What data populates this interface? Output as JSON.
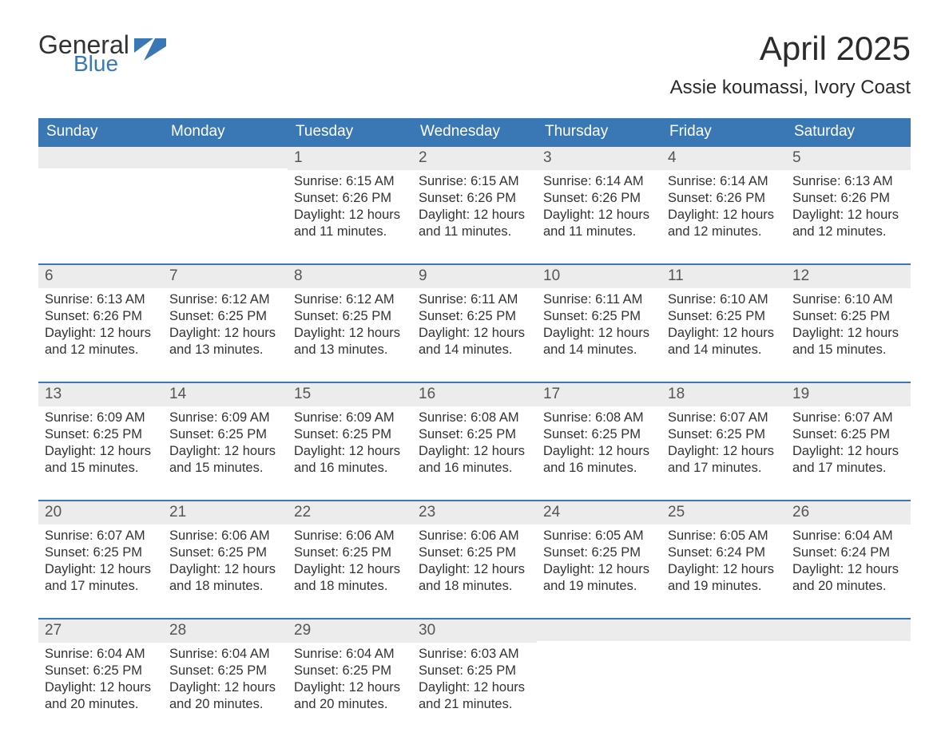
{
  "brand": {
    "word1": "General",
    "word2": "Blue",
    "accent_color": "#3a78b5"
  },
  "title": "April 2025",
  "location": "Assie koumassi, Ivory Coast",
  "colors": {
    "header_bg": "#3a78b5",
    "header_text": "#ffffff",
    "daynum_bg": "#ececec",
    "daynum_text": "#555555",
    "body_text": "#333333",
    "row_divider": "#3a78b5",
    "page_bg": "#ffffff"
  },
  "typography": {
    "title_fontsize": 42,
    "location_fontsize": 24,
    "header_fontsize": 19,
    "daynum_fontsize": 19,
    "cell_fontsize": 16.5
  },
  "day_headers": [
    "Sunday",
    "Monday",
    "Tuesday",
    "Wednesday",
    "Thursday",
    "Friday",
    "Saturday"
  ],
  "weeks": [
    [
      {
        "day": "",
        "sunrise": "",
        "sunset": "",
        "daylight": ""
      },
      {
        "day": "",
        "sunrise": "",
        "sunset": "",
        "daylight": ""
      },
      {
        "day": "1",
        "sunrise": "Sunrise: 6:15 AM",
        "sunset": "Sunset: 6:26 PM",
        "daylight": "Daylight: 12 hours and 11 minutes."
      },
      {
        "day": "2",
        "sunrise": "Sunrise: 6:15 AM",
        "sunset": "Sunset: 6:26 PM",
        "daylight": "Daylight: 12 hours and 11 minutes."
      },
      {
        "day": "3",
        "sunrise": "Sunrise: 6:14 AM",
        "sunset": "Sunset: 6:26 PM",
        "daylight": "Daylight: 12 hours and 11 minutes."
      },
      {
        "day": "4",
        "sunrise": "Sunrise: 6:14 AM",
        "sunset": "Sunset: 6:26 PM",
        "daylight": "Daylight: 12 hours and 12 minutes."
      },
      {
        "day": "5",
        "sunrise": "Sunrise: 6:13 AM",
        "sunset": "Sunset: 6:26 PM",
        "daylight": "Daylight: 12 hours and 12 minutes."
      }
    ],
    [
      {
        "day": "6",
        "sunrise": "Sunrise: 6:13 AM",
        "sunset": "Sunset: 6:26 PM",
        "daylight": "Daylight: 12 hours and 12 minutes."
      },
      {
        "day": "7",
        "sunrise": "Sunrise: 6:12 AM",
        "sunset": "Sunset: 6:25 PM",
        "daylight": "Daylight: 12 hours and 13 minutes."
      },
      {
        "day": "8",
        "sunrise": "Sunrise: 6:12 AM",
        "sunset": "Sunset: 6:25 PM",
        "daylight": "Daylight: 12 hours and 13 minutes."
      },
      {
        "day": "9",
        "sunrise": "Sunrise: 6:11 AM",
        "sunset": "Sunset: 6:25 PM",
        "daylight": "Daylight: 12 hours and 14 minutes."
      },
      {
        "day": "10",
        "sunrise": "Sunrise: 6:11 AM",
        "sunset": "Sunset: 6:25 PM",
        "daylight": "Daylight: 12 hours and 14 minutes."
      },
      {
        "day": "11",
        "sunrise": "Sunrise: 6:10 AM",
        "sunset": "Sunset: 6:25 PM",
        "daylight": "Daylight: 12 hours and 14 minutes."
      },
      {
        "day": "12",
        "sunrise": "Sunrise: 6:10 AM",
        "sunset": "Sunset: 6:25 PM",
        "daylight": "Daylight: 12 hours and 15 minutes."
      }
    ],
    [
      {
        "day": "13",
        "sunrise": "Sunrise: 6:09 AM",
        "sunset": "Sunset: 6:25 PM",
        "daylight": "Daylight: 12 hours and 15 minutes."
      },
      {
        "day": "14",
        "sunrise": "Sunrise: 6:09 AM",
        "sunset": "Sunset: 6:25 PM",
        "daylight": "Daylight: 12 hours and 15 minutes."
      },
      {
        "day": "15",
        "sunrise": "Sunrise: 6:09 AM",
        "sunset": "Sunset: 6:25 PM",
        "daylight": "Daylight: 12 hours and 16 minutes."
      },
      {
        "day": "16",
        "sunrise": "Sunrise: 6:08 AM",
        "sunset": "Sunset: 6:25 PM",
        "daylight": "Daylight: 12 hours and 16 minutes."
      },
      {
        "day": "17",
        "sunrise": "Sunrise: 6:08 AM",
        "sunset": "Sunset: 6:25 PM",
        "daylight": "Daylight: 12 hours and 16 minutes."
      },
      {
        "day": "18",
        "sunrise": "Sunrise: 6:07 AM",
        "sunset": "Sunset: 6:25 PM",
        "daylight": "Daylight: 12 hours and 17 minutes."
      },
      {
        "day": "19",
        "sunrise": "Sunrise: 6:07 AM",
        "sunset": "Sunset: 6:25 PM",
        "daylight": "Daylight: 12 hours and 17 minutes."
      }
    ],
    [
      {
        "day": "20",
        "sunrise": "Sunrise: 6:07 AM",
        "sunset": "Sunset: 6:25 PM",
        "daylight": "Daylight: 12 hours and 17 minutes."
      },
      {
        "day": "21",
        "sunrise": "Sunrise: 6:06 AM",
        "sunset": "Sunset: 6:25 PM",
        "daylight": "Daylight: 12 hours and 18 minutes."
      },
      {
        "day": "22",
        "sunrise": "Sunrise: 6:06 AM",
        "sunset": "Sunset: 6:25 PM",
        "daylight": "Daylight: 12 hours and 18 minutes."
      },
      {
        "day": "23",
        "sunrise": "Sunrise: 6:06 AM",
        "sunset": "Sunset: 6:25 PM",
        "daylight": "Daylight: 12 hours and 18 minutes."
      },
      {
        "day": "24",
        "sunrise": "Sunrise: 6:05 AM",
        "sunset": "Sunset: 6:25 PM",
        "daylight": "Daylight: 12 hours and 19 minutes."
      },
      {
        "day": "25",
        "sunrise": "Sunrise: 6:05 AM",
        "sunset": "Sunset: 6:24 PM",
        "daylight": "Daylight: 12 hours and 19 minutes."
      },
      {
        "day": "26",
        "sunrise": "Sunrise: 6:04 AM",
        "sunset": "Sunset: 6:24 PM",
        "daylight": "Daylight: 12 hours and 20 minutes."
      }
    ],
    [
      {
        "day": "27",
        "sunrise": "Sunrise: 6:04 AM",
        "sunset": "Sunset: 6:25 PM",
        "daylight": "Daylight: 12 hours and 20 minutes."
      },
      {
        "day": "28",
        "sunrise": "Sunrise: 6:04 AM",
        "sunset": "Sunset: 6:25 PM",
        "daylight": "Daylight: 12 hours and 20 minutes."
      },
      {
        "day": "29",
        "sunrise": "Sunrise: 6:04 AM",
        "sunset": "Sunset: 6:25 PM",
        "daylight": "Daylight: 12 hours and 20 minutes."
      },
      {
        "day": "30",
        "sunrise": "Sunrise: 6:03 AM",
        "sunset": "Sunset: 6:25 PM",
        "daylight": "Daylight: 12 hours and 21 minutes."
      },
      {
        "day": "",
        "sunrise": "",
        "sunset": "",
        "daylight": ""
      },
      {
        "day": "",
        "sunrise": "",
        "sunset": "",
        "daylight": ""
      },
      {
        "day": "",
        "sunrise": "",
        "sunset": "",
        "daylight": ""
      }
    ]
  ]
}
